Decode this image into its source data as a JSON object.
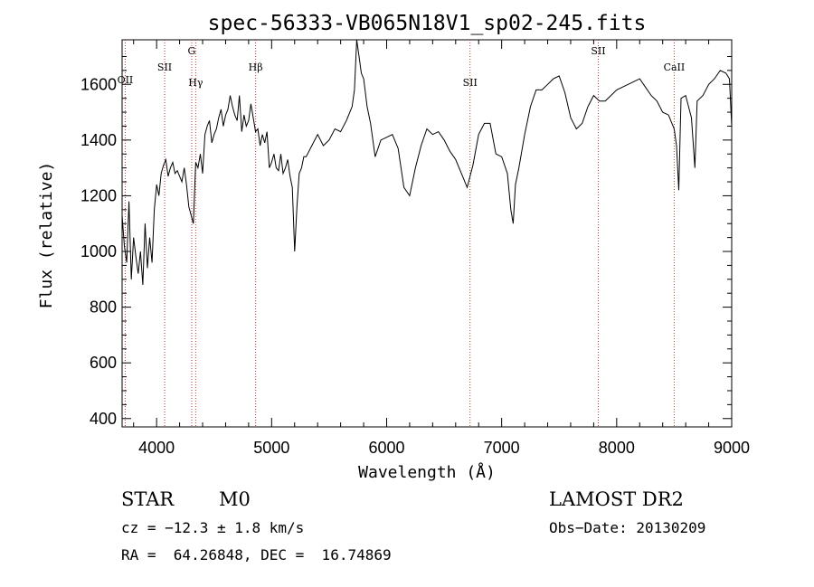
{
  "chart_data": {
    "type": "line",
    "title": "spec-56333-VB065N18V1_sp02-245.fits",
    "xlabel": "Wavelength (Å)",
    "ylabel": "Flux (relative)",
    "xlim": [
      3700,
      9000
    ],
    "ylim": [
      370,
      1760
    ],
    "xticks": [
      "4000",
      "5000",
      "6000",
      "7000",
      "8000",
      "9000"
    ],
    "yticks": [
      "400",
      "600",
      "800",
      "1000",
      "1200",
      "1400",
      "1600"
    ],
    "grid": false,
    "series": [
      {
        "x": [
          3700,
          3720,
          3740,
          3760,
          3780,
          3800,
          3820,
          3840,
          3860,
          3880,
          3900,
          3920,
          3940,
          3960,
          3980,
          4000,
          4020,
          4040,
          4060,
          4080,
          4100,
          4120,
          4140,
          4160,
          4180,
          4200,
          4220,
          4240,
          4260,
          4280,
          4300,
          4320,
          4340,
          4360,
          4380,
          4400,
          4420,
          4440,
          4460,
          4480,
          4500,
          4520,
          4540,
          4560,
          4580,
          4600,
          4620,
          4640,
          4660,
          4680,
          4700,
          4720,
          4740,
          4760,
          4780,
          4800,
          4820,
          4840,
          4860,
          4880,
          4900,
          4920,
          4940,
          4960,
          4980,
          5000,
          5020,
          5040,
          5060,
          5080,
          5100,
          5120,
          5140,
          5160,
          5180,
          5200,
          5220,
          5240,
          5260,
          5280,
          5300,
          5350,
          5400,
          5450,
          5500,
          5550,
          5600,
          5650,
          5700,
          5720,
          5740,
          5760,
          5780,
          5800,
          5830,
          5860,
          5900,
          5950,
          6000,
          6050,
          6100,
          6150,
          6200,
          6250,
          6300,
          6350,
          6400,
          6450,
          6500,
          6550,
          6600,
          6650,
          6700,
          6750,
          6800,
          6850,
          6900,
          6950,
          7000,
          7050,
          7080,
          7100,
          7120,
          7150,
          7200,
          7250,
          7300,
          7350,
          7400,
          7450,
          7500,
          7550,
          7600,
          7650,
          7700,
          7750,
          7800,
          7850,
          7900,
          7950,
          8000,
          8050,
          8100,
          8150,
          8200,
          8250,
          8300,
          8350,
          8400,
          8450,
          8500,
          8520,
          8540,
          8560,
          8600,
          8650,
          8680,
          8700,
          8750,
          8800,
          8850,
          8900,
          8950,
          8980,
          9000
        ],
        "y": [
          1130,
          1020,
          960,
          1180,
          900,
          1050,
          980,
          920,
          1000,
          880,
          1100,
          940,
          1050,
          960,
          1150,
          1240,
          1200,
          1280,
          1310,
          1330,
          1270,
          1300,
          1320,
          1280,
          1290,
          1270,
          1250,
          1300,
          1240,
          1160,
          1130,
          1100,
          1320,
          1300,
          1350,
          1280,
          1420,
          1450,
          1470,
          1390,
          1420,
          1440,
          1480,
          1510,
          1450,
          1490,
          1510,
          1560,
          1520,
          1490,
          1470,
          1560,
          1430,
          1490,
          1450,
          1470,
          1530,
          1480,
          1430,
          1440,
          1380,
          1420,
          1390,
          1430,
          1300,
          1320,
          1350,
          1300,
          1290,
          1350,
          1280,
          1300,
          1330,
          1270,
          1230,
          1000,
          1160,
          1280,
          1300,
          1340,
          1340,
          1380,
          1420,
          1380,
          1400,
          1440,
          1430,
          1470,
          1520,
          1580,
          1760,
          1700,
          1640,
          1620,
          1520,
          1460,
          1340,
          1400,
          1410,
          1420,
          1370,
          1230,
          1200,
          1300,
          1380,
          1440,
          1420,
          1430,
          1400,
          1360,
          1330,
          1280,
          1230,
          1310,
          1420,
          1460,
          1460,
          1350,
          1340,
          1280,
          1150,
          1100,
          1240,
          1300,
          1420,
          1520,
          1580,
          1580,
          1600,
          1620,
          1630,
          1570,
          1480,
          1440,
          1460,
          1520,
          1560,
          1540,
          1540,
          1560,
          1580,
          1590,
          1600,
          1610,
          1620,
          1590,
          1560,
          1540,
          1500,
          1490,
          1440,
          1380,
          1220,
          1550,
          1560,
          1480,
          1300,
          1540,
          1560,
          1600,
          1620,
          1650,
          1640,
          1620,
          1450
        ]
      }
    ],
    "markers": [
      {
        "label": "OII",
        "x": 3727
      },
      {
        "label": "SII",
        "x": 4070
      },
      {
        "label": "G",
        "x": 4305
      },
      {
        "label": "Hγ",
        "x": 4340
      },
      {
        "label": "Hβ",
        "x": 4861
      },
      {
        "label": "SII",
        "x": 6725
      },
      {
        "label": "SII",
        "x": 7840
      },
      {
        "label": "CaII",
        "x": 8500
      }
    ]
  },
  "info": {
    "object_class": "STAR",
    "subclass": "M0",
    "survey": "LAMOST DR2",
    "redshift": "cz = −12.3 ± 1.8 km/s",
    "obs_date": "Obs−Date: 20130209",
    "coords": "RA =  64.26848, DEC =  16.74869"
  }
}
